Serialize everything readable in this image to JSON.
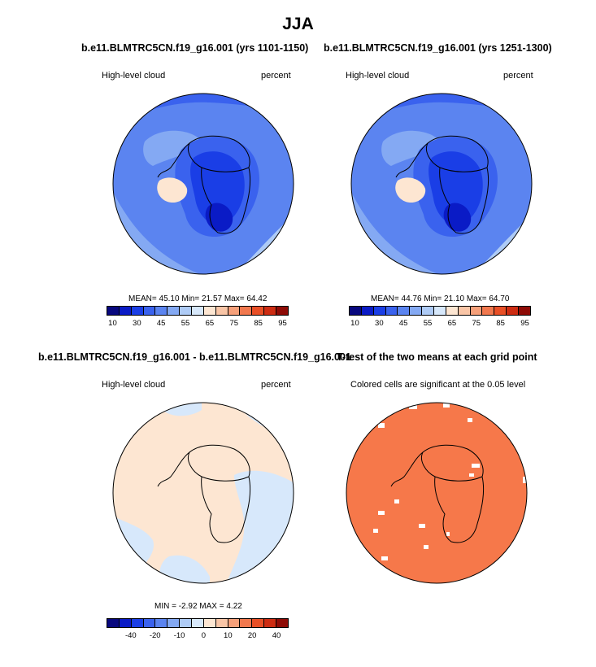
{
  "title": "JJA",
  "panels": [
    {
      "title": "b.e11.BLMTRC5CN.f19_g16.001 (yrs 1101-1150)",
      "left_label": "High-level cloud",
      "right_label": "percent",
      "stats": "MEAN= 45.10  Min= 21.57  Max= 64.42"
    },
    {
      "title": "b.e11.BLMTRC5CN.f19_g16.001 (yrs 1251-1300)",
      "left_label": "High-level cloud",
      "right_label": "percent",
      "stats": "MEAN= 44.76  Min= 21.10  Max= 64.70"
    },
    {
      "title": "b.e11.BLMTRC5CN.f19_g16.001 - b.e11.BLMTRC5CN.f19_g16.001",
      "left_label": "High-level cloud",
      "right_label": "percent",
      "stats": "MIN =  -2.92 MAX =   4.22"
    },
    {
      "title": "T-test of the two means at each grid point",
      "subtitle": "Colored cells are significant at the 0.05 level"
    }
  ],
  "colorbar_top": {
    "colors": [
      "#08087e",
      "#0a1bc6",
      "#1a3ee6",
      "#3a62ee",
      "#5b84f0",
      "#84a9f3",
      "#aecbf6",
      "#d7e8fb",
      "#fde6d2",
      "#f9c5a6",
      "#f6a07a",
      "#f1784e",
      "#e84f26",
      "#cd2c12",
      "#8e0b06"
    ],
    "ticks": [
      "10",
      "30",
      "45",
      "55",
      "65",
      "75",
      "85",
      "95"
    ]
  },
  "colorbar_bottom": {
    "colors": [
      "#08087e",
      "#0a1bc6",
      "#1a3ee6",
      "#3a62ee",
      "#5b84f0",
      "#84a9f3",
      "#aecbf6",
      "#d7e8fb",
      "#fde6d2",
      "#f9c5a6",
      "#f6a07a",
      "#f1784e",
      "#e84f26",
      "#cd2c12",
      "#8e0b06"
    ],
    "ticks": [
      "-40",
      "-20",
      "-10",
      "0",
      "10",
      "20",
      "40"
    ]
  },
  "map_colors": {
    "cloud_ocean": "#5b84f0",
    "cloud_light": "#84a9f3",
    "cloud_pale": "#aecbf6",
    "cloud_mid": "#3a62ee",
    "cloud_dark": "#1a3ee6",
    "cloud_darkest": "#0a1bc6",
    "cloud_peach": "#fde6d2",
    "diff_pos": "#fde6d2",
    "diff_neg": "#d7e8fb",
    "ttest_fill": "#f6784a"
  }
}
